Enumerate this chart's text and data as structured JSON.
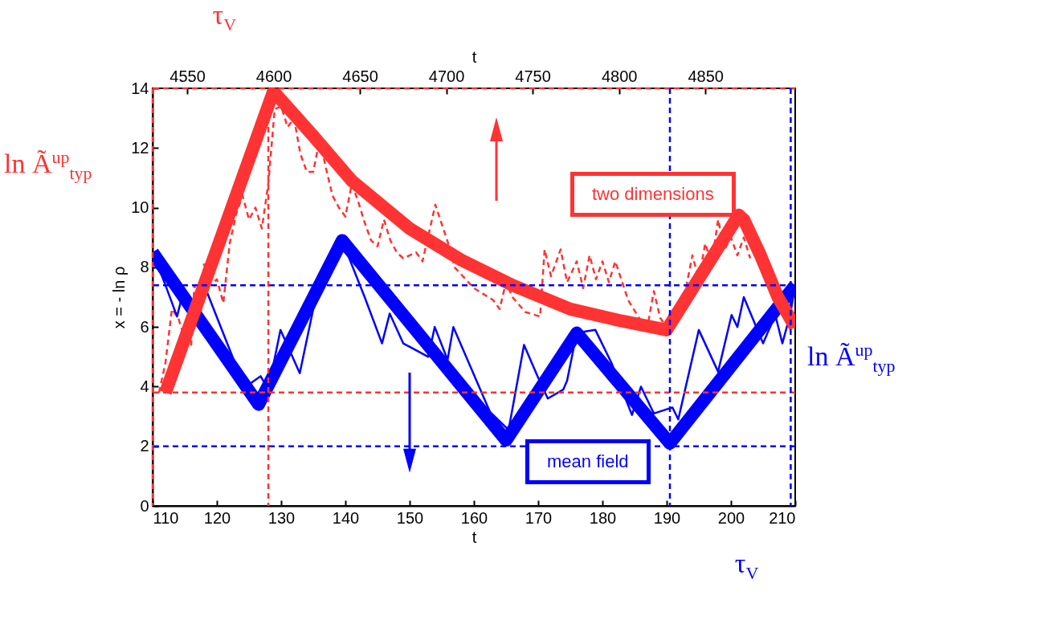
{
  "chart_data": {
    "type": "line",
    "xlabel": "t",
    "ylabel": "x = - ln ρ",
    "x2label": "t",
    "xlim": [
      110,
      210
    ],
    "xticks": [
      110,
      120,
      130,
      140,
      150,
      160,
      170,
      180,
      190,
      200,
      210
    ],
    "x2lim": [
      4530,
      4902
    ],
    "x2ticks": [
      4550,
      4600,
      4650,
      4700,
      4750,
      4800,
      4850
    ],
    "ylim": [
      0,
      14
    ],
    "yticks": [
      0,
      2,
      4,
      6,
      8,
      10,
      12,
      14
    ],
    "grid": false,
    "series": [
      {
        "color": "#ff3333",
        "line_style": "dashed",
        "x": [
          111,
          112,
          113,
          114,
          115,
          116,
          116.5,
          117.5,
          118,
          119,
          120,
          121,
          122,
          123,
          124,
          125,
          126,
          127,
          128,
          129,
          130,
          131,
          132,
          133,
          134,
          135,
          136,
          137,
          138,
          139,
          140,
          141,
          142,
          143,
          144,
          145,
          146,
          147,
          148,
          149,
          151,
          152,
          154,
          156,
          157,
          160,
          163,
          164,
          165,
          166,
          168,
          170.3,
          171,
          172,
          173.5,
          174.5,
          176,
          177,
          178,
          179,
          180,
          181,
          182,
          184,
          186,
          187,
          188,
          189,
          190,
          191,
          192,
          193,
          194,
          195,
          196,
          197,
          198,
          199,
          200,
          201,
          202,
          203
        ],
        "values": [
          3.8,
          4.8,
          6.6,
          6.3,
          5.6,
          5.4,
          7.4,
          6.5,
          8.1,
          7.4,
          7.6,
          6.8,
          8.8,
          9.8,
          10.4,
          9.6,
          10.0,
          9.3,
          10.8,
          13.3,
          13.4,
          12.7,
          13.0,
          11.8,
          11.2,
          11.2,
          12.3,
          11.3,
          10.4,
          10.0,
          9.7,
          10.8,
          10.2,
          9.5,
          8.9,
          8.7,
          9.6,
          8.9,
          8.5,
          8.3,
          8.5,
          8.2,
          10.1,
          8.8,
          8.0,
          7.3,
          6.9,
          6.6,
          7.5,
          7.0,
          6.5,
          6.35,
          8.6,
          7.7,
          8.6,
          7.5,
          8.2,
          7.3,
          8.4,
          7.6,
          8.2,
          7.5,
          8.2,
          6.9,
          6.2,
          6.0,
          7.2,
          6.3,
          6.0,
          6.1,
          6.5,
          7.3,
          8.4,
          7.6,
          8.8,
          8.1,
          9.6,
          8.6,
          9.0,
          8.4,
          9.0,
          8.3
        ]
      },
      {
        "color": "#0000ff",
        "x": [
          110,
          112,
          113.8,
          114.9,
          116.5,
          118.4,
          122.8,
          124.5,
          126.8,
          128,
          129.9,
          132.9,
          135,
          139.5,
          143,
          145.7,
          146.9,
          149,
          152.9,
          153.9,
          155.9,
          156.8,
          162.5,
          165.4,
          167.8,
          169.9,
          171.5,
          173.9,
          174.5,
          176,
          178.9,
          181.4,
          184.6,
          186,
          188,
          190.9,
          191.8,
          195,
          198,
          200.1,
          201,
          202,
          205,
          206.9,
          208,
          209.2,
          210
        ],
        "values": [
          8.5,
          7.4,
          6.35,
          7.3,
          6.3,
          7.2,
          4.8,
          4.0,
          4.35,
          3.9,
          5.9,
          4.45,
          6.6,
          8.9,
          7.0,
          5.45,
          6.45,
          5.45,
          5.0,
          6.0,
          4.9,
          6.0,
          3.15,
          2.55,
          5.4,
          4.35,
          3.6,
          3.9,
          4.2,
          5.8,
          5.9,
          4.8,
          3.05,
          4.0,
          3.1,
          3.3,
          2.9,
          5.9,
          4.5,
          6.4,
          6.0,
          7.0,
          5.45,
          6.4,
          5.45,
          6.4,
          7.4
        ]
      },
      {
        "name": "mean field",
        "color": "#0000ff",
        "x": [
          110,
          126.5,
          139.5,
          165,
          176,
          190.5,
          210
        ],
        "values": [
          8.5,
          3.4,
          8.9,
          2.2,
          5.8,
          2.1,
          7.4
        ]
      },
      {
        "name": "two dimensions",
        "color": "#ff3333",
        "x": [
          112,
          128.8,
          135,
          141,
          150,
          158,
          166,
          175,
          183,
          190,
          201.2,
          202,
          204.6,
          207.3,
          210
        ],
        "values": [
          3.8,
          13.9,
          12.4,
          10.9,
          9.3,
          8.25,
          7.4,
          6.6,
          6.2,
          5.9,
          9.75,
          9.6,
          8.4,
          7.0,
          6.0
        ]
      }
    ],
    "ref_lines": [
      {
        "axis": "x2",
        "value": 4530,
        "label": null,
        "color": "#ff3333",
        "line_style": "dashed"
      },
      {
        "axis": "x2",
        "value": 4597,
        "label": "τ$_{V}$",
        "color": "#ff3333",
        "line_style": "dashed"
      },
      {
        "axis": "y",
        "value": 14,
        "label": "ln Ã$^{up}$$_{typ}$",
        "color": "#ff3333",
        "line_style": "dashed"
      },
      {
        "axis": "y",
        "value": 3.8,
        "label": null,
        "color": "#ff3333",
        "line_style": "dashed"
      },
      {
        "axis": "x",
        "value": 190.5,
        "label": null,
        "color": "#0000ff",
        "line_style": "dashed"
      },
      {
        "axis": "x",
        "value": 209.3,
        "label": "τ$_{V}$",
        "color": "#0000ff",
        "line_style": "dashed"
      },
      {
        "axis": "y",
        "value": 7.4,
        "label": "ln Ã$^{up}$$_{typ}$",
        "color": "#0000ff",
        "line_style": "dashed"
      },
      {
        "axis": "y",
        "value": 2.0,
        "label": null,
        "color": "#0000ff",
        "line_style": "dashed"
      }
    ]
  }
}
